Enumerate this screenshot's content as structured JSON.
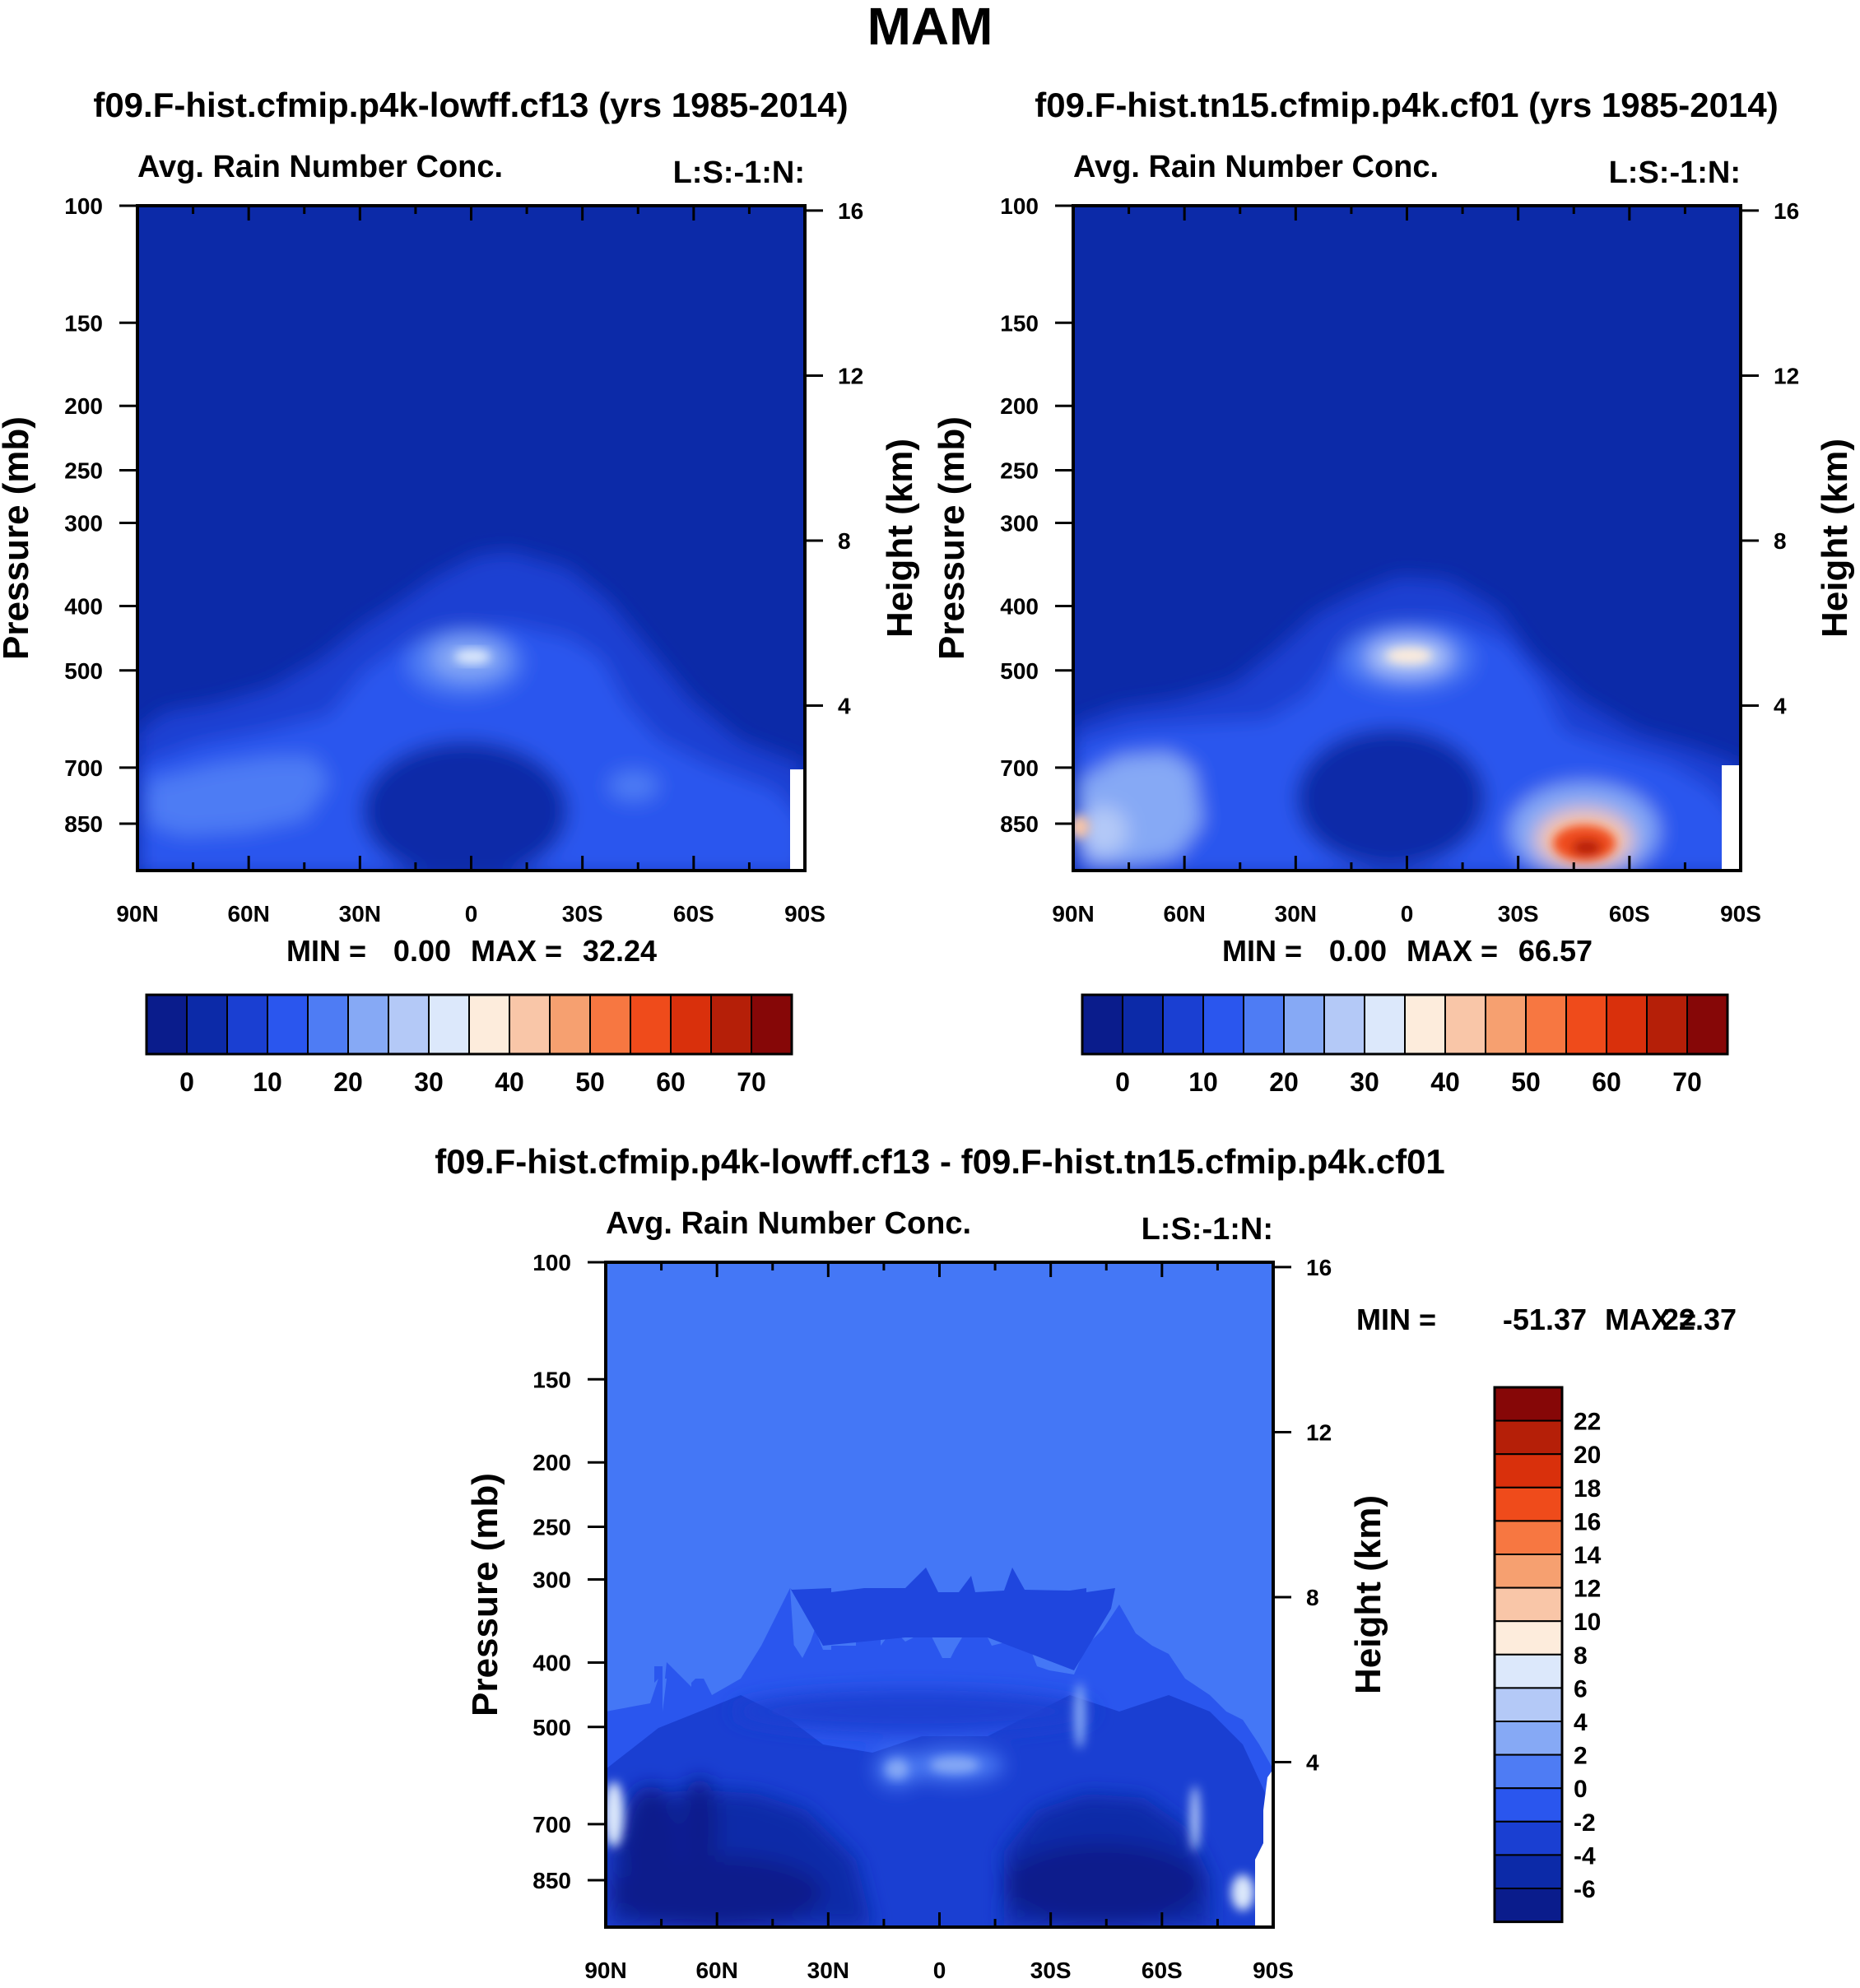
{
  "page": {
    "title": "MAM"
  },
  "colors": {
    "abs_palette": [
      "#0a1c8c",
      "#0c2aa8",
      "#1a3fd2",
      "#2a56ee",
      "#4e7cf4",
      "#86a9f5",
      "#b4c9f7",
      "#dce8fb",
      "#fdecdc",
      "#f9c6a8",
      "#f6a070",
      "#f77741",
      "#ef4b1b",
      "#d9300c",
      "#b51f08",
      "#860707"
    ],
    "diff_palette": [
      "#0a1c8c",
      "#0c2aa8",
      "#1a3fd2",
      "#2a56ee",
      "#4e7cf4",
      "#86a9f5",
      "#b4c9f7",
      "#dce8fb",
      "#fdecdc",
      "#f9c6a8",
      "#f6a070",
      "#f77741",
      "#ef4b1b",
      "#d9300c",
      "#b51f08",
      "#860707"
    ]
  },
  "chart_data": [
    {
      "type": "heatmap",
      "title": "f09.F-hist.cfmip.p4k-lowff.cf13 (yrs 1985-2014)",
      "left_string": "Avg. Rain Number Conc.",
      "right_string": "L:S:-1:N:",
      "ylabel": "Pressure (mb)",
      "ylabel_right": "Height (km)",
      "x_ticks": [
        "90N",
        "60N",
        "30N",
        "0",
        "30S",
        "60S",
        "90S"
      ],
      "y_ticks": [
        "100",
        "150",
        "200",
        "250",
        "300",
        "400",
        "500",
        "700",
        "850"
      ],
      "y_ticks_right": [
        "16",
        "12",
        "8",
        "4"
      ],
      "stats": {
        "min_label": "MIN =",
        "min_value": "0.00",
        "max_label": "MAX =",
        "max_value": "32.24"
      },
      "colorbar": {
        "orientation": "horizontal",
        "labels": [
          "0",
          "10",
          "20",
          "30",
          "40",
          "50",
          "60",
          "70"
        ]
      },
      "ylim": [
        1000,
        100
      ],
      "xlim": [
        "90N",
        "90S"
      ]
    },
    {
      "type": "heatmap",
      "title": "f09.F-hist.tn15.cfmip.p4k.cf01 (yrs 1985-2014)",
      "left_string": "Avg. Rain Number Conc.",
      "right_string": "L:S:-1:N:",
      "ylabel": "Pressure (mb)",
      "ylabel_right": "Height (km)",
      "x_ticks": [
        "90N",
        "60N",
        "30N",
        "0",
        "30S",
        "60S",
        "90S"
      ],
      "y_ticks": [
        "100",
        "150",
        "200",
        "250",
        "300",
        "400",
        "500",
        "700",
        "850"
      ],
      "y_ticks_right": [
        "16",
        "12",
        "8",
        "4"
      ],
      "stats": {
        "min_label": "MIN =",
        "min_value": "0.00",
        "max_label": "MAX =",
        "max_value": "66.57"
      },
      "colorbar": {
        "orientation": "horizontal",
        "labels": [
          "0",
          "10",
          "20",
          "30",
          "40",
          "50",
          "60",
          "70"
        ]
      },
      "ylim": [
        1000,
        100
      ],
      "xlim": [
        "90N",
        "90S"
      ]
    },
    {
      "type": "heatmap",
      "title": "f09.F-hist.cfmip.p4k-lowff.cf13 - f09.F-hist.tn15.cfmip.p4k.cf01",
      "left_string": "Avg. Rain Number Conc.",
      "right_string": "L:S:-1:N:",
      "ylabel": "Pressure (mb)",
      "ylabel_right": "Height (km)",
      "x_ticks": [
        "90N",
        "60N",
        "30N",
        "0",
        "30S",
        "60S",
        "90S"
      ],
      "y_ticks": [
        "100",
        "150",
        "200",
        "250",
        "300",
        "400",
        "500",
        "700",
        "850"
      ],
      "y_ticks_right": [
        "16",
        "12",
        "8",
        "4"
      ],
      "stats": {
        "min_label": "MIN =",
        "min_value": "-51.37",
        "max_label": "MAX =",
        "max_value": "22.37"
      },
      "colorbar": {
        "orientation": "vertical",
        "labels": [
          "22",
          "20",
          "18",
          "16",
          "14",
          "12",
          "10",
          "8",
          "6",
          "4",
          "2",
          "0",
          "-2",
          "-4",
          "-6"
        ]
      },
      "ylim": [
        1000,
        100
      ],
      "xlim": [
        "90N",
        "90S"
      ]
    }
  ]
}
